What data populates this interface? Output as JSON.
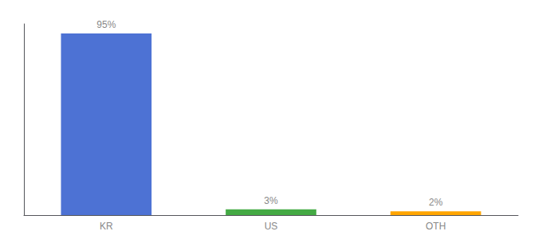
{
  "chart_data": {
    "type": "bar",
    "categories": [
      "KR",
      "US",
      "OTH"
    ],
    "values": [
      95,
      3,
      2
    ],
    "value_labels": [
      "95%",
      "3%",
      "2%"
    ],
    "data_labels": true,
    "colors": [
      "#4d72d4",
      "#44AA44",
      "#FFA500"
    ],
    "ylim": [
      0,
      100
    ],
    "grid": false,
    "tick_labels": "x"
  }
}
